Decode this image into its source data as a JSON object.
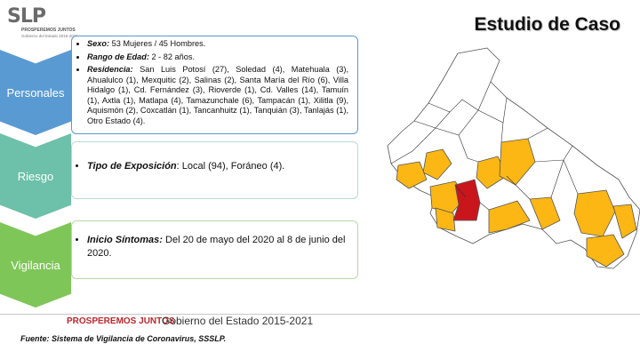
{
  "header": {
    "logo_text": "SLP",
    "logo_sub1": "PROSPEREMOS JUNTOS",
    "logo_sub2": "Gobierno del Estado 2015-2021",
    "title": "Estudio de Caso"
  },
  "sections": {
    "personales": {
      "label": "Personales",
      "sexo_label": "Sexo:",
      "sexo_value": " 53  Mujeres / 45 Hombres.",
      "edad_label": "Rango de Edad:",
      "edad_value": "  2 - 82 años.",
      "residencia_label": "Residencia:",
      "residencia_value": " San Luis Potosí (27), Soledad (4), Matehuala (3), Ahualulco (1), Mexquitic (2), Salinas (2), Santa María del Río (6), Villa Hidalgo (1), Cd. Fernández (3), Rioverde (1), Cd. Valles (14), Tamuín (1), Axtla (1), Matlapa (4), Tamazunchale (6), Tampacán (1), Xilitla (9), Aquismón (2), Coxcatlán (1), Tancanhuitz (1), Tanquián (3), Tanlajás (1), Otro Estado (4)."
    },
    "riesgo": {
      "label": "Riesgo",
      "exposicion_label": "Tipo de Exposición",
      "exposicion_value": ": Local (94), Foráneo (4)."
    },
    "vigilancia": {
      "label": "Vigilancia",
      "inicio_label": "Inicio Síntomas:",
      "inicio_value": "  Del 20 de mayo del 2020 al 8 de junio del 2020."
    }
  },
  "map": {
    "colors": {
      "affected": "#fcb714",
      "capital": "#c9161d",
      "none": "#ffffff",
      "border": "#555555"
    }
  },
  "footer": {
    "slogan": "PROSPEREMOS JUNTOS",
    "government": "Gobierno del Estado 2015-2021",
    "source": "Fuente: Sistema de Vigilancia de Coronavirus, SSSLP."
  }
}
